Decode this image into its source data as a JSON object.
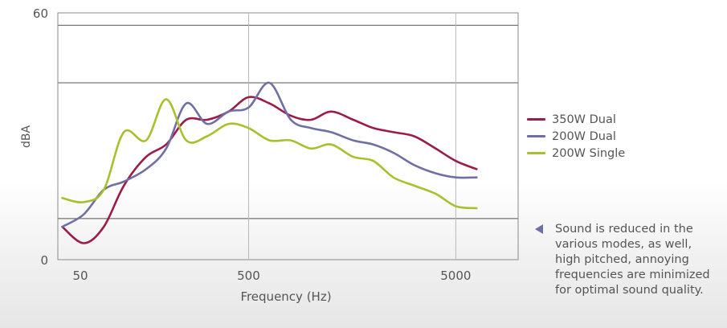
{
  "chart_data": {
    "type": "line",
    "xlabel": "Frequency (Hz)",
    "ylabel": "dBA",
    "x_scale": "log",
    "xlim": [
      60,
      10000
    ],
    "ylim": [
      0,
      60
    ],
    "x_ticks": [
      50,
      500,
      5000
    ],
    "x_tick_labels": [
      "50",
      "500",
      "5000"
    ],
    "y_ticks": [
      0,
      60
    ],
    "y_tick_labels": [
      "0",
      "60"
    ],
    "grid": true,
    "bands": [
      {
        "from": 43,
        "to": 57
      },
      {
        "from": 0,
        "to": 10
      }
    ],
    "legend_position": "right",
    "series": [
      {
        "name": "350W Dual",
        "color": "#9b1b4b",
        "x": [
          63,
          80,
          100,
          125,
          160,
          200,
          250,
          315,
          400,
          500,
          630,
          800,
          1000,
          1250,
          1600,
          2000,
          2500,
          3150,
          4000,
          5000,
          6300
        ],
        "y": [
          8,
          4,
          8,
          18,
          25,
          28,
          34,
          34,
          36,
          39.5,
          38,
          35,
          34,
          36,
          34,
          32,
          31,
          30,
          27,
          24,
          22
        ]
      },
      {
        "name": "200W Dual",
        "color": "#6f6fa6",
        "x": [
          63,
          80,
          100,
          125,
          160,
          200,
          250,
          315,
          400,
          500,
          630,
          800,
          1000,
          1250,
          1600,
          2000,
          2500,
          3150,
          4000,
          5000,
          6300
        ],
        "y": [
          8,
          11,
          17,
          19,
          22,
          27,
          38,
          33,
          36,
          37,
          43,
          34,
          32,
          31,
          29,
          28,
          26,
          23,
          21,
          20,
          20
        ]
      },
      {
        "name": "200W Single",
        "color": "#a9bf2c",
        "x": [
          63,
          80,
          100,
          125,
          160,
          200,
          250,
          315,
          400,
          500,
          630,
          800,
          1000,
          1250,
          1600,
          2000,
          2500,
          3150,
          4000,
          5000,
          6300
        ],
        "y": [
          15,
          14,
          17,
          31,
          29,
          39,
          29,
          30,
          33,
          32,
          29,
          29,
          27,
          28,
          25,
          24,
          20,
          18,
          16,
          13,
          12.5
        ]
      }
    ],
    "annotation": "Sound is reduced in the various modes, as well, high pitched, annoying frequencies are minimized for optimal sound quality."
  }
}
